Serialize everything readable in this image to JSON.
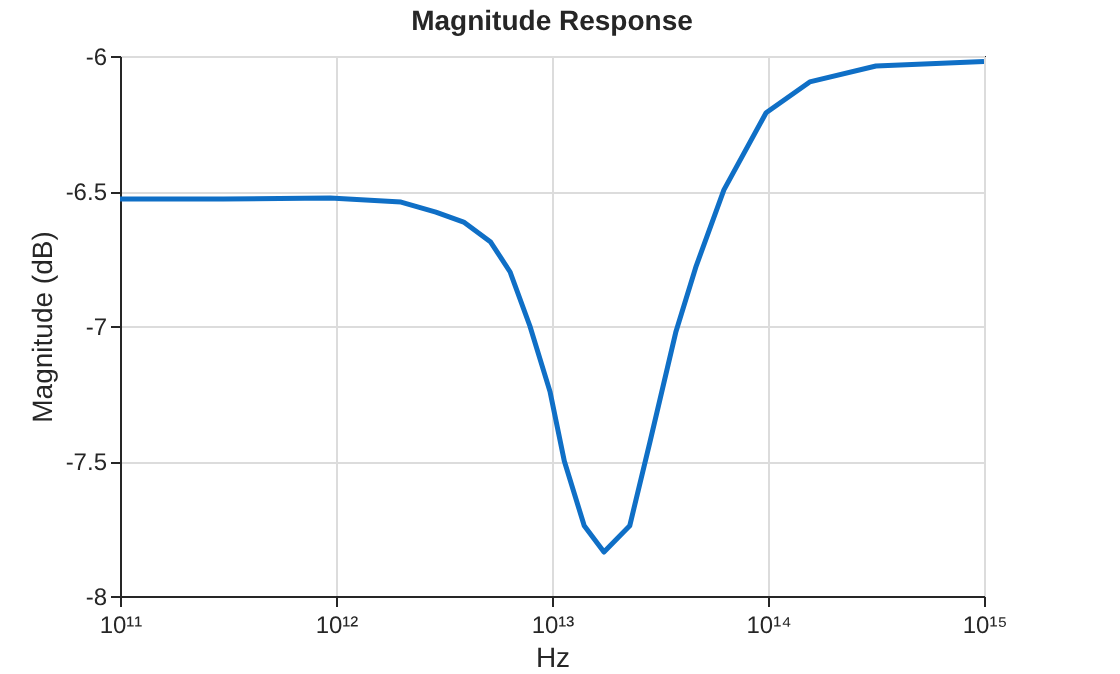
{
  "chart_data": {
    "type": "line",
    "title": "Magnitude Response",
    "xlabel": "Hz",
    "ylabel": "Magnitude (dB)",
    "log": "x",
    "grid": true,
    "xlim": [
      100000000000.0,
      1000000000000000.0
    ],
    "xticks": [
      {
        "value": 100000000000.0,
        "label": "10¹¹"
      },
      {
        "value": 1000000000000.0,
        "label": "10¹²"
      },
      {
        "value": 10000000000000.0,
        "label": "10¹³"
      },
      {
        "value": 100000000000000.0,
        "label": "10¹⁴"
      },
      {
        "value": 1000000000000000.0,
        "label": "10¹⁵"
      }
    ],
    "ylim": [
      -8,
      -6
    ],
    "yticks": [
      -8,
      -7.5,
      -7,
      -6.5,
      -6
    ],
    "series": [
      {
        "color": "#0f6fc6",
        "x": [
          100000000000.0,
          300000000000.0,
          940000000000.0,
          2000000000000.0,
          2900000000000.0,
          3900000000000.0,
          5200000000000.0,
          6400000000000.0,
          7900000000000.0,
          9800000000000.0,
          11400000000000.0,
          14100000000000.0,
          17400000000000.0,
          22900000000000.0,
          28400000000000.0,
          37500000000000.0,
          46500000000000.0,
          62500000000000.0,
          98000000000000.0,
          156000000000000.0,
          316000000000000.0,
          1000000000000000.0
        ],
        "values": [
          -6.53,
          -6.53,
          -6.526,
          -6.541,
          -6.578,
          -6.615,
          -6.689,
          -6.8,
          -7.0,
          -7.244,
          -7.5,
          -7.74,
          -7.837,
          -7.74,
          -7.43,
          -7.02,
          -6.778,
          -6.496,
          -6.21,
          -6.096,
          -6.037,
          -6.02
        ]
      }
    ]
  }
}
